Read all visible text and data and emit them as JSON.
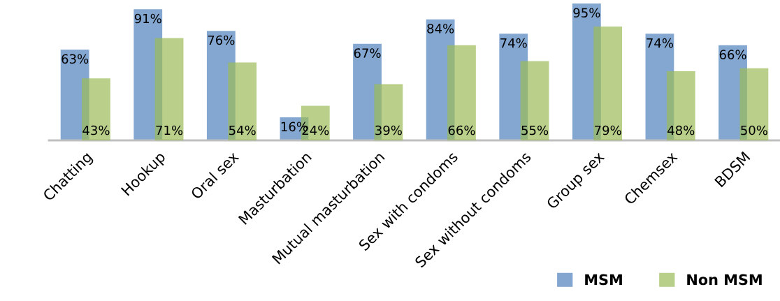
{
  "chart_data": {
    "type": "bar",
    "categories": [
      "Chatting",
      "Hookup",
      "Oral sex",
      "Masturbation",
      "Mutual masturbation",
      "Sex with condoms",
      "Sex without condoms",
      "Group sex",
      "Chemsex",
      "BDSM"
    ],
    "series": [
      {
        "name": "MSM",
        "color": "#4f81bd",
        "values": [
          63,
          91,
          76,
          16,
          67,
          84,
          74,
          95,
          74,
          66
        ],
        "value_labels": [
          "63%",
          "91%",
          "76%",
          "16%",
          "67%",
          "84%",
          "74%",
          "95%",
          "74%",
          "66%"
        ]
      },
      {
        "name": "Non MSM",
        "color": "#9bbb59",
        "values": [
          43,
          71,
          54,
          24,
          39,
          66,
          55,
          79,
          48,
          50
        ],
        "value_labels": [
          "43%",
          "71%",
          "54%",
          "24%",
          "39%",
          "66%",
          "55%",
          "79%",
          "48%",
          "50%"
        ]
      }
    ],
    "legend": "bottom right"
  }
}
